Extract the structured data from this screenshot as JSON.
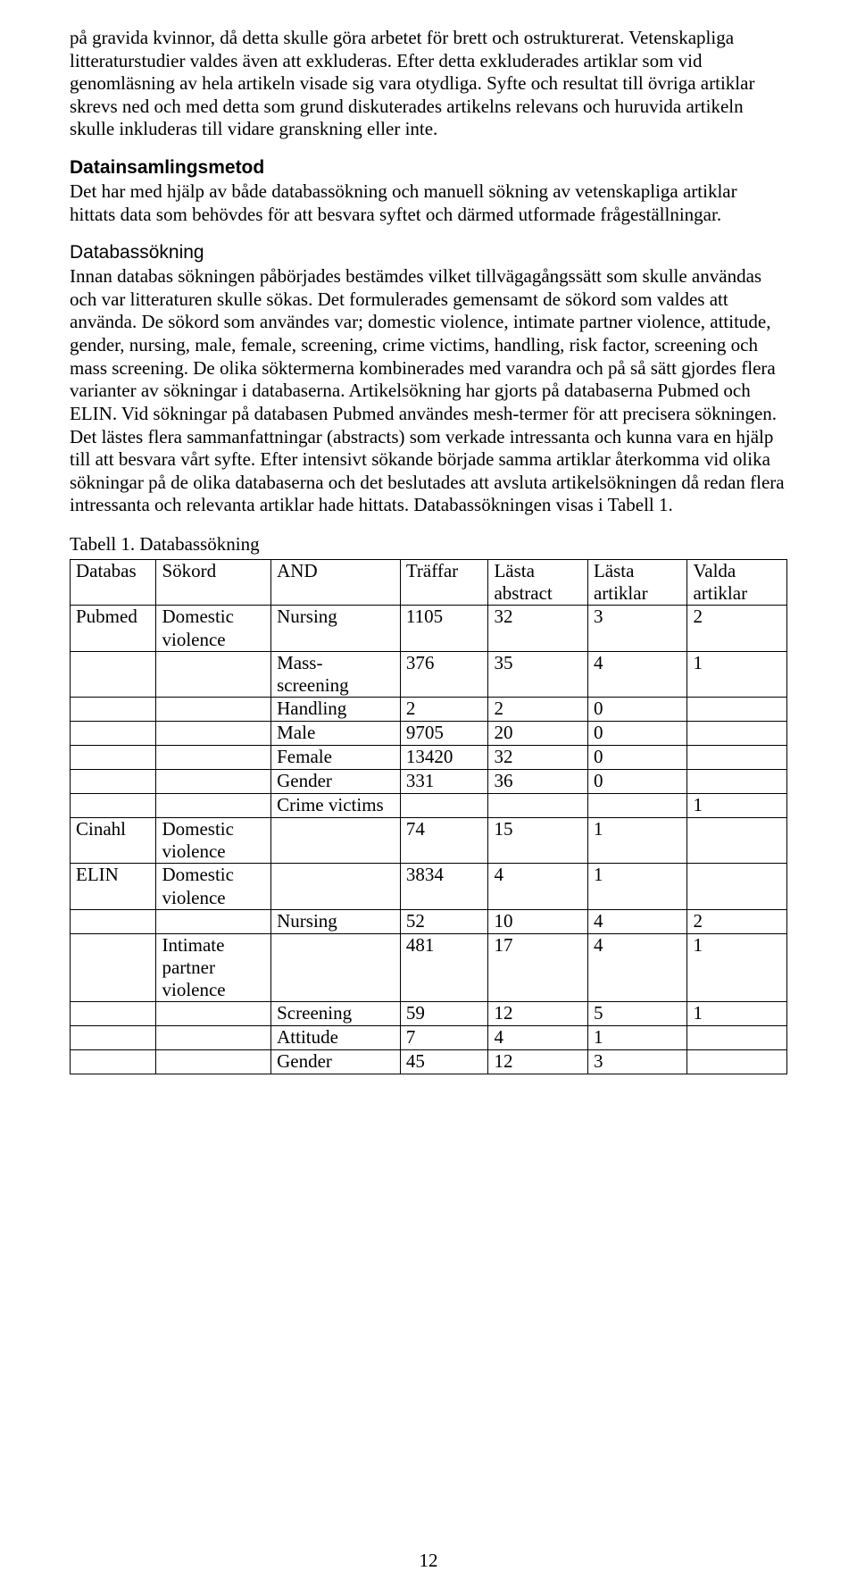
{
  "paragraphs": {
    "p1": "på gravida kvinnor, då detta skulle göra arbetet för brett och ostrukturerat. Vetenskapliga litteraturstudier valdes även att exkluderas. Efter detta exkluderades artiklar som vid genomläsning av hela artikeln visade sig vara otydliga. Syfte och resultat till övriga artiklar skrevs ned och med detta som grund diskuterades artikelns relevans och huruvida artikeln skulle inkluderas till vidare granskning eller inte.",
    "h_datainsamling": "Datainsamlingsmetod",
    "p2": "Det har med hjälp av både databassökning och manuell sökning av vetenskapliga artiklar hittats data som behövdes för att besvara syftet och därmed utformade frågeställningar.",
    "h_databassokning": "Databassökning",
    "p3": "Innan databas sökningen påbörjades bestämdes vilket tillvägagångssätt som skulle användas och var litteraturen skulle sökas. Det formulerades gemensamt de sökord som valdes att använda. De sökord som användes var; domestic violence, intimate partner violence, attitude, gender, nursing, male, female, screening, crime victims, handling, risk factor, screening och mass screening. De olika söktermerna kombinerades med varandra och på så sätt gjordes flera varianter av sökningar i databaserna. Artikelsökning har gjorts på databaserna Pubmed och ELIN. Vid sökningar på databasen Pubmed användes mesh-termer för att precisera sökningen. Det lästes flera sammanfattningar (abstracts) som verkade intressanta och kunna vara en hjälp till att besvara vårt syfte. Efter intensivt sökande började samma artiklar återkomma vid olika sökningar på de olika databaserna och det beslutades att avsluta artikelsökningen då redan flera intressanta och relevanta artiklar hade hittats. Databassökningen visas i Tabell 1."
  },
  "table": {
    "caption": "Tabell 1. Databassökning",
    "columns": [
      "Databas",
      "Sökord",
      "AND",
      "Träffar",
      "Lästa abstract",
      "Lästa artiklar",
      "Valda artiklar"
    ],
    "rows": [
      [
        "Pubmed",
        "Domestic violence",
        "Nursing",
        "1105",
        "32",
        "3",
        "2"
      ],
      [
        "",
        "",
        "Mass-screening",
        "376",
        "35",
        "4",
        "1"
      ],
      [
        "",
        "",
        "Handling",
        "2",
        "2",
        "0",
        ""
      ],
      [
        "",
        "",
        "Male",
        "9705",
        "20",
        "0",
        ""
      ],
      [
        "",
        "",
        "Female",
        "13420",
        "32",
        "0",
        ""
      ],
      [
        "",
        "",
        "Gender",
        "331",
        "36",
        "0",
        ""
      ],
      [
        "",
        "",
        "Crime victims",
        "",
        "",
        "",
        "1"
      ],
      [
        "Cinahl",
        "Domestic violence",
        "",
        "74",
        "15",
        "1",
        ""
      ],
      [
        "ELIN",
        "Domestic violence",
        "",
        "3834",
        "4",
        "1",
        ""
      ],
      [
        "",
        "",
        "Nursing",
        "52",
        "10",
        "4",
        "2"
      ],
      [
        "",
        "Intimate partner violence",
        "",
        "481",
        "17",
        "4",
        "1"
      ],
      [
        "",
        "",
        "Screening",
        "59",
        "12",
        "5",
        "1"
      ],
      [
        "",
        "",
        "Attitude",
        "7",
        "4",
        "1",
        ""
      ],
      [
        "",
        "",
        "Gender",
        "45",
        "12",
        "3",
        ""
      ]
    ]
  },
  "page_number": "12",
  "colors": {
    "text": "#000000",
    "background": "#ffffff",
    "table_border": "#000000"
  }
}
